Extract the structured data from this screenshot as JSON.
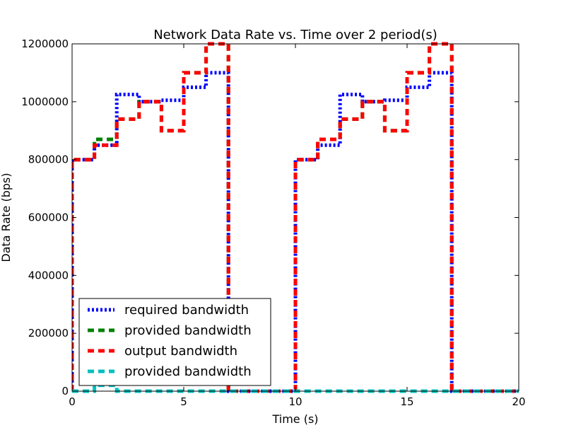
{
  "chart_data": {
    "type": "line",
    "title": "Network Data Rate vs. Time over 2 period(s)",
    "xlabel": "Time (s)",
    "ylabel": "Data Rate (bps)",
    "xlim": [
      0,
      20
    ],
    "ylim": [
      0,
      1200000
    ],
    "xticks": [
      0,
      5,
      10,
      15,
      20
    ],
    "yticks": [
      0,
      200000,
      400000,
      600000,
      800000,
      1000000,
      1200000
    ],
    "grid": false,
    "legend_position": "lower-left",
    "series": [
      {
        "name": "required bandwidth",
        "color": "#0000ff",
        "style": "dotted",
        "x": [
          0,
          0,
          1,
          1,
          2,
          2,
          3,
          3,
          4,
          4,
          5,
          5,
          6,
          6,
          7,
          7,
          10,
          10,
          11,
          11,
          12,
          12,
          13,
          13,
          14,
          14,
          15,
          15,
          16,
          16,
          17,
          17,
          20
        ],
        "y": [
          0,
          800000,
          800000,
          850000,
          850000,
          1025000,
          1025000,
          1000000,
          1000000,
          1005000,
          1005000,
          1050000,
          1050000,
          1100000,
          1100000,
          0,
          0,
          800000,
          800000,
          850000,
          850000,
          1025000,
          1025000,
          1000000,
          1000000,
          1005000,
          1005000,
          1050000,
          1050000,
          1100000,
          1100000,
          0,
          0
        ]
      },
      {
        "name": "provided bandwidth",
        "color": "#008000",
        "style": "dashed",
        "x": [
          0,
          0,
          1,
          1,
          2,
          2,
          3,
          3,
          4,
          4,
          5,
          5,
          6,
          6,
          7,
          7,
          10,
          10,
          11,
          11,
          12,
          12,
          13,
          13,
          14,
          14,
          15,
          15,
          16,
          16,
          17,
          17,
          20
        ],
        "y": [
          0,
          800000,
          800000,
          870000,
          870000,
          940000,
          940000,
          1000000,
          1000000,
          900000,
          900000,
          1100000,
          1100000,
          1200000,
          1200000,
          0,
          0,
          800000,
          800000,
          870000,
          870000,
          940000,
          940000,
          1000000,
          1000000,
          900000,
          900000,
          1100000,
          1100000,
          1200000,
          1200000,
          0,
          0
        ]
      },
      {
        "name": "output bandwidth",
        "color": "#ff0000",
        "style": "dashed",
        "x": [
          0,
          0,
          1,
          1,
          2,
          2,
          3,
          3,
          4,
          4,
          5,
          5,
          6,
          6,
          7,
          7,
          10,
          10,
          11,
          11,
          12,
          12,
          13,
          13,
          14,
          14,
          15,
          15,
          16,
          16,
          17,
          17,
          20
        ],
        "y": [
          0,
          800000,
          800000,
          850000,
          850000,
          940000,
          940000,
          1000000,
          1000000,
          900000,
          900000,
          1100000,
          1100000,
          1200000,
          1200000,
          0,
          0,
          800000,
          800000,
          870000,
          870000,
          940000,
          940000,
          1000000,
          1000000,
          900000,
          900000,
          1100000,
          1100000,
          1200000,
          1200000,
          0,
          0
        ]
      },
      {
        "name": "provided bandwidth",
        "color": "#00bfbf",
        "style": "dashed",
        "x": [
          0,
          1,
          1,
          2,
          2,
          20
        ],
        "y": [
          0,
          0,
          20000,
          20000,
          0,
          0
        ]
      }
    ]
  }
}
